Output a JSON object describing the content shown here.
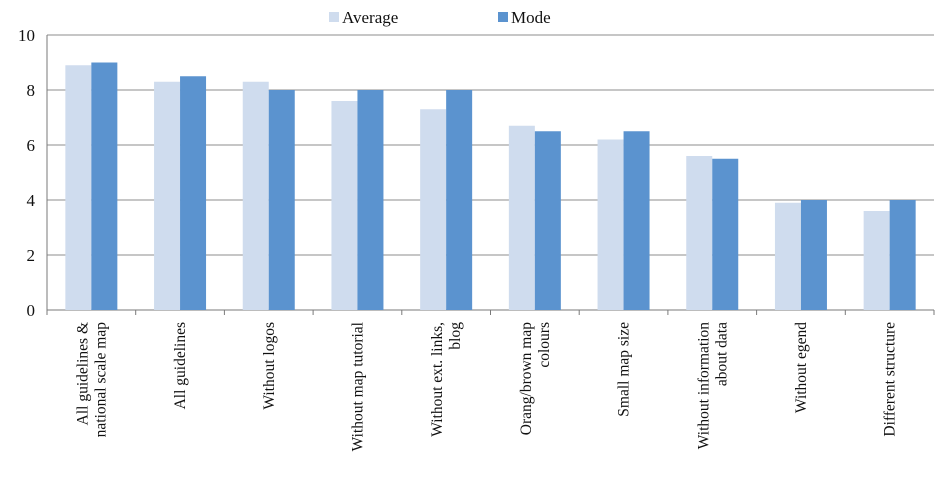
{
  "chart_data": {
    "type": "bar",
    "title": "",
    "xlabel": "",
    "ylabel": "",
    "ylim": [
      0,
      10
    ],
    "yticks": [
      "0",
      "2",
      "4",
      "6",
      "8",
      "10"
    ],
    "grid": true,
    "legend_position": "top",
    "categories": [
      [
        "All guidelines &",
        "national scale map"
      ],
      [
        "All guidelines"
      ],
      [
        "Without logos"
      ],
      [
        "Without map tutorial"
      ],
      [
        "Without ext. links,",
        "blog"
      ],
      [
        "Orang/brown map",
        "colours"
      ],
      [
        "Small map size"
      ],
      [
        "Without information",
        "about data"
      ],
      [
        "Without egend"
      ],
      [
        "Different structure"
      ]
    ],
    "series": [
      {
        "name": "Average",
        "color": "#cfdcee",
        "values": [
          8.9,
          8.3,
          8.3,
          7.6,
          7.3,
          6.7,
          6.2,
          5.6,
          3.9,
          3.6
        ]
      },
      {
        "name": "Mode",
        "color": "#5b93cf",
        "values": [
          9.0,
          8.5,
          8.0,
          8.0,
          8.0,
          6.5,
          6.5,
          5.5,
          4.0,
          4.0
        ]
      }
    ]
  }
}
